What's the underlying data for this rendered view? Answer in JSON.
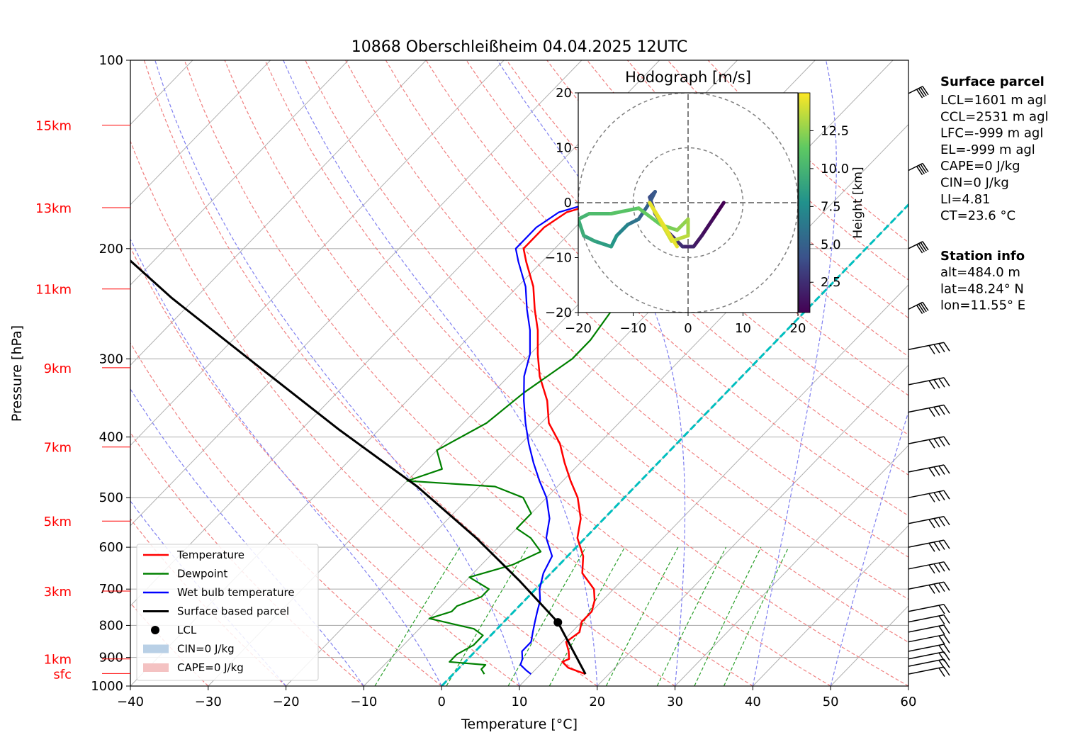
{
  "chart_data": [
    {
      "type": "line",
      "subtype": "skew-T log-P diagram",
      "title": "10868 Oberschleißheim 04.04.2025 12UTC",
      "xlabel": "Temperature [°C]",
      "ylabel": "Pressure [hPa]",
      "xlim": [
        -40,
        60
      ],
      "ylim": [
        1000,
        100
      ],
      "y_scale": "log",
      "x_ticks": [
        "−40",
        "−30",
        "−20",
        "−10",
        "0",
        "10",
        "20",
        "30",
        "40",
        "50",
        "60"
      ],
      "y_ticks": [
        "100",
        "200",
        "300",
        "400",
        "500",
        "600",
        "700",
        "800",
        "900",
        "1000"
      ],
      "height_labels": [
        {
          "label": "sfc",
          "p": 955
        },
        {
          "label": "1km",
          "p": 905
        },
        {
          "label": "3km",
          "p": 705
        },
        {
          "label": "5km",
          "p": 545
        },
        {
          "label": "7km",
          "p": 415
        },
        {
          "label": "9km",
          "p": 310
        },
        {
          "label": "11km",
          "p": 232
        },
        {
          "label": "13km",
          "p": 172
        },
        {
          "label": "15km",
          "p": 127
        }
      ],
      "colors": {
        "temperature": "#ff0000",
        "dewpoint": "#008000",
        "wetbulb": "#0000ff",
        "parcel": "#000000",
        "zero_isotherm": "#00bfbf",
        "dry_adiabats": "#f08080",
        "moist_adiabats": "#8080f0",
        "mixing_ratio": "#2ca02c",
        "isotherms": "#b0b0b0",
        "height_labels": "#ff0000"
      },
      "series": [
        {
          "name": "Temperature",
          "color": "#ff0000",
          "points": [
            [
              17,
              957
            ],
            [
              14,
              935
            ],
            [
              12.5,
              915
            ],
            [
              13,
              905
            ],
            [
              12,
              880
            ],
            [
              10.5,
              850
            ],
            [
              11,
              820
            ],
            [
              10,
              790
            ],
            [
              10,
              760
            ],
            [
              9,
              730
            ],
            [
              7.5,
              700
            ],
            [
              4,
              660
            ],
            [
              2,
              620
            ],
            [
              -1,
              580
            ],
            [
              -3,
              540
            ],
            [
              -6,
              500
            ],
            [
              -9,
              470
            ],
            [
              -12,
              440
            ],
            [
              -15,
              410
            ],
            [
              -19,
              380
            ],
            [
              -22,
              350
            ],
            [
              -26,
              320
            ],
            [
              -29,
              295
            ],
            [
              -32,
              270
            ],
            [
              -35,
              250
            ],
            [
              -38,
              230
            ],
            [
              -42,
              210
            ],
            [
              -44,
              200
            ],
            [
              -44,
              185
            ],
            [
              -43,
              175
            ],
            [
              -38,
              165
            ],
            [
              -35,
              155
            ],
            [
              -33,
              148
            ],
            [
              -34,
              140
            ],
            [
              -33,
              132
            ],
            [
              -32,
              127
            ],
            [
              -31,
              123
            ]
          ]
        },
        {
          "name": "Dewpoint",
          "color": "#008000",
          "points": [
            [
              4,
              957
            ],
            [
              3,
              940
            ],
            [
              3,
              925
            ],
            [
              -2,
              915
            ],
            [
              -2,
              890
            ],
            [
              -1,
              860
            ],
            [
              -1,
              830
            ],
            [
              -3,
              810
            ],
            [
              -10,
              780
            ],
            [
              -8,
              760
            ],
            [
              -8,
              745
            ],
            [
              -6,
              720
            ],
            [
              -6,
              700
            ],
            [
              -10,
              670
            ],
            [
              -6,
              640
            ],
            [
              -4,
              610
            ],
            [
              -7,
              580
            ],
            [
              -10,
              560
            ],
            [
              -10,
              530
            ],
            [
              -13,
              500
            ],
            [
              -18,
              480
            ],
            [
              -30,
              470
            ],
            [
              -27,
              450
            ],
            [
              -30,
              420
            ],
            [
              -27,
              380
            ],
            [
              -26,
              340
            ],
            [
              -24,
              300
            ],
            [
              -24,
              280
            ],
            [
              -25,
              250
            ],
            [
              -28,
              230
            ],
            [
              -30,
              215
            ],
            [
              -28,
              200
            ],
            [
              -37,
              185
            ],
            [
              -38,
              175
            ],
            [
              -40,
              160
            ],
            [
              -40,
              150
            ],
            [
              -40,
              140
            ],
            [
              -40,
              132
            ],
            [
              -40,
              127
            ]
          ]
        },
        {
          "name": "Wet bulb temperature",
          "color": "#0000ff",
          "points": [
            [
              10,
              957
            ],
            [
              9,
              945
            ],
            [
              7.5,
              925
            ],
            [
              7,
              905
            ],
            [
              6,
              880
            ],
            [
              6,
              850
            ],
            [
              5,
              820
            ],
            [
              4,
              790
            ],
            [
              3,
              760
            ],
            [
              2,
              730
            ],
            [
              0.5,
              700
            ],
            [
              -1,
              660
            ],
            [
              -2,
              620
            ],
            [
              -5,
              580
            ],
            [
              -7,
              540
            ],
            [
              -10,
              500
            ],
            [
              -13,
              470
            ],
            [
              -16,
              440
            ],
            [
              -19,
              410
            ],
            [
              -22,
              380
            ],
            [
              -25,
              350
            ],
            [
              -28,
              320
            ],
            [
              -30,
              295
            ],
            [
              -33,
              270
            ],
            [
              -36,
              250
            ],
            [
              -39,
              230
            ],
            [
              -43,
              210
            ],
            [
              -45,
              200
            ],
            [
              -45,
              185
            ],
            [
              -44,
              175
            ],
            [
              -39,
              165
            ],
            [
              -36,
              155
            ],
            [
              -34,
              148
            ],
            [
              -35,
              140
            ],
            [
              -34,
              132
            ],
            [
              -33,
              127
            ],
            [
              -32,
              123
            ]
          ]
        },
        {
          "name": "Surface based parcel",
          "color": "#000000",
          "points": [
            [
              17,
              957
            ],
            [
              7,
              791
            ],
            [
              -3,
              680
            ],
            [
              -14,
              580
            ],
            [
              -28,
              480
            ],
            [
              -45,
              390
            ],
            [
              -63,
              310
            ],
            [
              -83,
              240
            ],
            [
              -100,
              190
            ],
            [
              -115,
              150
            ],
            [
              -128,
              125
            ],
            [
              -135,
              113
            ]
          ]
        }
      ],
      "lcl_marker": {
        "name": "LCL",
        "t": 7,
        "p": 791
      },
      "legend": {
        "placement": "lower-left",
        "entries": [
          "Temperature",
          "Dewpoint",
          "Wet bulb temperature",
          "Surface based parcel",
          "LCL",
          "CIN=0 J/kg",
          "CAPE=0 J/kg"
        ]
      },
      "wind_barb_levels_hPa": [
        957,
        930,
        905,
        880,
        850,
        820,
        790,
        760,
        700,
        650,
        600,
        550,
        500,
        455,
        410,
        365,
        330,
        290,
        250,
        200,
        150,
        113
      ]
    },
    {
      "type": "scatter",
      "subtype": "hodograph",
      "title": "Hodograph [m/s]",
      "xlim": [
        -20,
        20
      ],
      "ylim": [
        -20,
        20
      ],
      "ticks": [
        "−20",
        "−10",
        "0",
        "10",
        "20"
      ],
      "rings": [
        10,
        20
      ],
      "colorbar": {
        "label": "Height [km]",
        "ticks": [
          "2.5",
          "5.0",
          "7.5",
          "10.0",
          "12.5"
        ],
        "range": [
          0.5,
          15
        ]
      },
      "path": [
        [
          6.5,
          0,
          0.5
        ],
        [
          4.5,
          -3,
          1
        ],
        [
          2.5,
          -6,
          1.5
        ],
        [
          1,
          -8,
          2
        ],
        [
          -1,
          -8,
          2.5
        ],
        [
          -4,
          -5,
          3
        ],
        [
          -6,
          -2,
          3.5
        ],
        [
          -7,
          1,
          4
        ],
        [
          -6,
          2,
          4.5
        ],
        [
          -7,
          0,
          5
        ],
        [
          -9,
          -3,
          6
        ],
        [
          -11,
          -4,
          7
        ],
        [
          -13,
          -6,
          8
        ],
        [
          -14,
          -8,
          8.5
        ],
        [
          -17,
          -7,
          9
        ],
        [
          -19,
          -6,
          9.5
        ],
        [
          -20,
          -3,
          10
        ],
        [
          -18,
          -2,
          10.5
        ],
        [
          -14,
          -2,
          11
        ],
        [
          -9,
          -1,
          11.5
        ],
        [
          -5,
          -4,
          12
        ],
        [
          -2,
          -5,
          12.5
        ],
        [
          0,
          -3,
          13
        ],
        [
          0,
          -6,
          13.5
        ],
        [
          -3,
          -7,
          14
        ],
        [
          -7,
          0,
          14.5
        ],
        [
          -2,
          -8,
          15
        ]
      ]
    }
  ],
  "info": {
    "surface_parcel": {
      "title": "Surface parcel",
      "lines": [
        "LCL=1601 m agl",
        "CCL=2531 m agl",
        "LFC=-999 m agl",
        "EL=-999 m agl",
        "CAPE=0 J/kg",
        "CIN=0 J/kg",
        "LI=4.81",
        "CT=23.6 °C"
      ]
    },
    "station": {
      "title": "Station info",
      "lines": [
        "alt=484.0 m",
        "lat=48.24° N",
        "lon=11.55° E"
      ]
    }
  }
}
